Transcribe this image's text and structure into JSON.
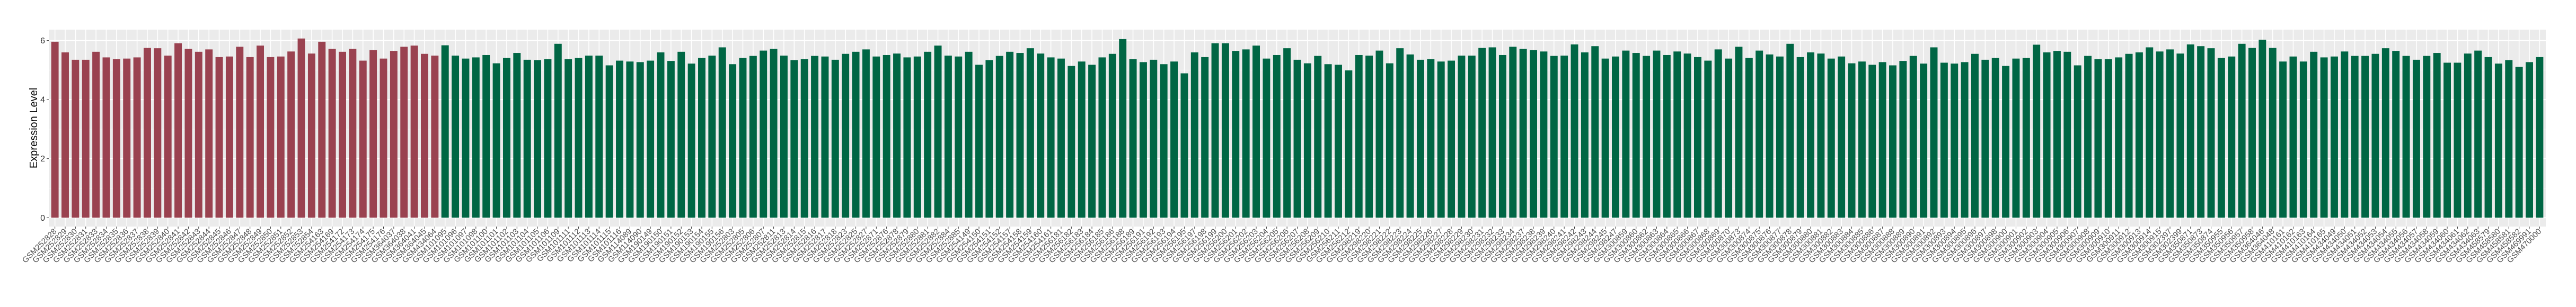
{
  "chart_data": {
    "type": "bar",
    "title": "",
    "xlabel": "",
    "ylabel": "Expression Level",
    "ylim": [
      -0.3,
      6.37
    ],
    "yticks": [
      0,
      2,
      4,
      6
    ],
    "grid": true,
    "legend": "none",
    "panel_background": "#ebebeb",
    "colors": {
      "group1": "#9a4250",
      "group2": "#006644"
    },
    "categories": [
      "GSM252828",
      "GSM252829",
      "GSM252830",
      "GSM252831",
      "GSM252833",
      "GSM252834",
      "GSM252835",
      "GSM252836",
      "GSM252837",
      "GSM252838",
      "GSM252839",
      "GSM252840",
      "GSM252841",
      "GSM252842",
      "GSM252843",
      "GSM252844",
      "GSM252845",
      "GSM252846",
      "GSM252847",
      "GSM252848",
      "GSM252849",
      "GSM252850",
      "GSM252851",
      "GSM252852",
      "GSM252853",
      "GSM252854",
      "GSM254163",
      "GSM254169",
      "GSM254172",
      "GSM254173",
      "GSM254174",
      "GSM254175",
      "GSM254176",
      "GSM364037",
      "GSM364038",
      "GSM364041",
      "GSM364045",
      "GSM434064",
      "GSM101095",
      "GSM101096",
      "GSM101097",
      "GSM101098",
      "GSM101100",
      "GSM101101",
      "GSM101102",
      "GSM101103",
      "GSM101104",
      "GSM101105",
      "GSM101106",
      "GSM101109",
      "GSM101111",
      "GSM101112",
      "GSM101113",
      "GSM101114",
      "GSM101115",
      "GSM101116",
      "GSM114089",
      "GSM114090",
      "GSM190149",
      "GSM190150",
      "GSM190151",
      "GSM190152",
      "GSM190153",
      "GSM190154",
      "GSM190155",
      "GSM190156",
      "GSM252803",
      "GSM252805",
      "GSM252806",
      "GSM252807",
      "GSM252811",
      "GSM252813",
      "GSM252814",
      "GSM252815",
      "GSM252816",
      "GSM252817",
      "GSM252818",
      "GSM252823",
      "GSM252825",
      "GSM252827",
      "GSM252871",
      "GSM252876",
      "GSM252878",
      "GSM252879",
      "GSM252880",
      "GSM252881",
      "GSM252882",
      "GSM252884",
      "GSM252885",
      "GSM254149",
      "GSM254150",
      "GSM254151",
      "GSM254152",
      "GSM254157",
      "GSM254158",
      "GSM254159",
      "GSM254160",
      "GSM254161",
      "GSM256181",
      "GSM256182",
      "GSM256183",
      "GSM256184",
      "GSM256185",
      "GSM256186",
      "GSM256188",
      "GSM256189",
      "GSM256191",
      "GSM256192",
      "GSM256193",
      "GSM256194",
      "GSM256195",
      "GSM256197",
      "GSM256198",
      "GSM256199",
      "GSM256200",
      "GSM256201",
      "GSM256202",
      "GSM256203",
      "GSM256204",
      "GSM256205",
      "GSM256206",
      "GSM256207",
      "GSM256208",
      "GSM256209",
      "GSM256210",
      "GSM256211",
      "GSM256212",
      "GSM298219",
      "GSM298220",
      "GSM298221",
      "GSM298222",
      "GSM298223",
      "GSM298224",
      "GSM298225",
      "GSM298226",
      "GSM298227",
      "GSM298228",
      "GSM298229",
      "GSM298230",
      "GSM298231",
      "GSM298232",
      "GSM298233",
      "GSM298234",
      "GSM298237",
      "GSM298238",
      "GSM298239",
      "GSM298240",
      "GSM298241",
      "GSM298242",
      "GSM298243",
      "GSM298244",
      "GSM298245",
      "GSM298247",
      "GSM300859",
      "GSM300860",
      "GSM300862",
      "GSM300863",
      "GSM300864",
      "GSM300865",
      "GSM300866",
      "GSM300867",
      "GSM300868",
      "GSM300869",
      "GSM300870",
      "GSM300873",
      "GSM300874",
      "GSM300875",
      "GSM300876",
      "GSM300877",
      "GSM300878",
      "GSM300879",
      "GSM300880",
      "GSM300881",
      "GSM300882",
      "GSM300883",
      "GSM300884",
      "GSM300885",
      "GSM300886",
      "GSM300887",
      "GSM300888",
      "GSM300889",
      "GSM300890",
      "GSM300891",
      "GSM300892",
      "GSM300893",
      "GSM300894",
      "GSM300895",
      "GSM300896",
      "GSM300897",
      "GSM300898",
      "GSM300900",
      "GSM300901",
      "GSM300902",
      "GSM300903",
      "GSM300904",
      "GSM300905",
      "GSM300906",
      "GSM300907",
      "GSM300908",
      "GSM300909",
      "GSM300910",
      "GSM300911",
      "GSM300912",
      "GSM300913",
      "GSM300914",
      "GSM300915",
      "GSM302397",
      "GSM302399",
      "GSM350871",
      "GSM350873",
      "GSM350874",
      "GSM350955",
      "GSM350956",
      "GSM350957",
      "GSM350958",
      "GSM364046",
      "GSM364048",
      "GSM410161",
      "GSM410162",
      "GSM410163",
      "GSM410164",
      "GSM410165",
      "GSM434049",
      "GSM434050",
      "GSM434051",
      "GSM434052",
      "GSM434053",
      "GSM434054",
      "GSM434055",
      "GSM434056",
      "GSM434057",
      "GSM434058",
      "GSM434059",
      "GSM434060",
      "GSM434061",
      "GSM434062",
      "GSM434063",
      "GSM458579",
      "GSM458580",
      "GSM458581",
      "GSM458582",
      "GSM469991",
      "GSM470000"
    ],
    "values": [
      5.96,
      5.6,
      5.35,
      5.35,
      5.62,
      5.43,
      5.37,
      5.39,
      5.43,
      5.75,
      5.74,
      5.49,
      5.91,
      5.72,
      5.62,
      5.7,
      5.44,
      5.46,
      5.79,
      5.44,
      5.83,
      5.44,
      5.46,
      5.63,
      6.07,
      5.56,
      5.96,
      5.72,
      5.62,
      5.72,
      5.32,
      5.68,
      5.39,
      5.65,
      5.79,
      5.83,
      5.55,
      5.49,
      5.84,
      5.49,
      5.39,
      5.43,
      5.51,
      5.23,
      5.41,
      5.58,
      5.35,
      5.34,
      5.37,
      5.89,
      5.37,
      5.41,
      5.49,
      5.49,
      5.16,
      5.32,
      5.29,
      5.27,
      5.32,
      5.6,
      5.31,
      5.62,
      5.22,
      5.41,
      5.49,
      5.77,
      5.2,
      5.41,
      5.48,
      5.66,
      5.72,
      5.49,
      5.34,
      5.37,
      5.48,
      5.46,
      5.35,
      5.55,
      5.62,
      5.7,
      5.46,
      5.51,
      5.56,
      5.43,
      5.46,
      5.62,
      5.83,
      5.49,
      5.46,
      5.62,
      5.18,
      5.34,
      5.48,
      5.62,
      5.58,
      5.74,
      5.56,
      5.43,
      5.39,
      5.14,
      5.29,
      5.18,
      5.43,
      5.55,
      6.05,
      5.37,
      5.27,
      5.35,
      5.2,
      5.29,
      4.89,
      5.6,
      5.44,
      5.91,
      5.91,
      5.65,
      5.7,
      5.83,
      5.39,
      5.51,
      5.74,
      5.35,
      5.23,
      5.48,
      5.2,
      5.18,
      4.99,
      5.51,
      5.49,
      5.66,
      5.23,
      5.74,
      5.53,
      5.35,
      5.37,
      5.29,
      5.32,
      5.49,
      5.49,
      5.75,
      5.77,
      5.51,
      5.79,
      5.72,
      5.68,
      5.63,
      5.48,
      5.49,
      5.87,
      5.6,
      5.81,
      5.39,
      5.46,
      5.66,
      5.58,
      5.48,
      5.66,
      5.51,
      5.63,
      5.56,
      5.44,
      5.32,
      5.7,
      5.39,
      5.79,
      5.41,
      5.66,
      5.53,
      5.46,
      5.89,
      5.44,
      5.6,
      5.56,
      5.39,
      5.46,
      5.23,
      5.29,
      5.18,
      5.27,
      5.16,
      5.31,
      5.48,
      5.22,
      5.77,
      5.25,
      5.22,
      5.27,
      5.55,
      5.35,
      5.41,
      5.14,
      5.39,
      5.41,
      5.86,
      5.6,
      5.65,
      5.62,
      5.16,
      5.48,
      5.37,
      5.37,
      5.43,
      5.55,
      5.6,
      5.77,
      5.63,
      5.7,
      5.56,
      5.87,
      5.81,
      5.74,
      5.41,
      5.46,
      5.89,
      5.75,
      6.03,
      5.75,
      5.29,
      5.46,
      5.29,
      5.62,
      5.43,
      5.46,
      5.63,
      5.48,
      5.48,
      5.55,
      5.74,
      5.65,
      5.48,
      5.35,
      5.48,
      5.58,
      5.25,
      5.25,
      5.56,
      5.66,
      5.44,
      5.22,
      5.34,
      5.11,
      5.27,
      5.44
    ],
    "group1_count": 38
  }
}
